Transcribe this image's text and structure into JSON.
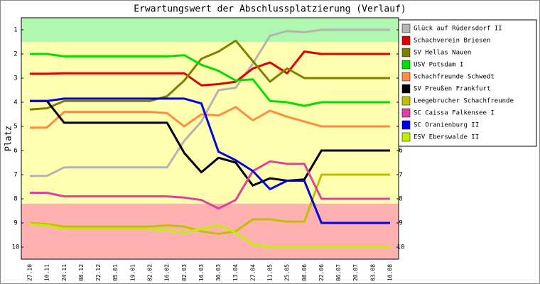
{
  "chart_data": {
    "type": "line",
    "title": "Erwartungswert der Abschlussplatzierung (Verlauf)",
    "y_label": "Platz",
    "categories": [
      "27.10",
      "10.11",
      "24.11",
      "08.12",
      "22.12",
      "05.01",
      "19.01",
      "02.02",
      "16.02",
      "02.03",
      "16.03",
      "30.03",
      "13.04",
      "27.04",
      "11.05",
      "25.05",
      "08.06",
      "22.06",
      "06.07",
      "20.07",
      "03.08",
      "10.08"
    ],
    "ylim": [
      0.5,
      10.5
    ],
    "y_inverted": true,
    "yticks": [
      1,
      2,
      3,
      4,
      5,
      6,
      7,
      8,
      9,
      10
    ],
    "bands": [
      {
        "from": 0.5,
        "to": 1.5,
        "color": "#b0f8b0"
      },
      {
        "from": 1.5,
        "to": 8.2,
        "color": "#ffffb0"
      },
      {
        "from": 8.2,
        "to": 10.5,
        "color": "#ffb0b0"
      }
    ],
    "series": [
      {
        "name": "Glück auf Rüdersdorf II",
        "color": "#b4b4b4",
        "values": [
          7.05,
          7.05,
          6.7,
          6.7,
          6.7,
          6.7,
          6.7,
          6.7,
          6.7,
          5.6,
          4.8,
          3.5,
          3.4,
          2.4,
          1.25,
          1.05,
          1.1,
          1.0,
          1.0,
          1.0,
          1.0,
          1.0
        ]
      },
      {
        "name": "Schachverein Briesen",
        "color": "#e00000",
        "values": [
          2.82,
          2.82,
          2.8,
          2.8,
          2.8,
          2.8,
          2.8,
          2.8,
          2.8,
          2.8,
          3.3,
          3.25,
          3.15,
          2.6,
          2.35,
          2.8,
          1.9,
          2.0,
          2.0,
          2.0,
          2.0,
          2.0
        ]
      },
      {
        "name": "SV Hellas Nauen",
        "color": "#808000",
        "values": [
          4.3,
          4.25,
          3.95,
          3.95,
          3.95,
          3.95,
          3.95,
          3.95,
          3.75,
          3.1,
          2.2,
          1.9,
          1.45,
          2.3,
          3.15,
          2.6,
          3.0,
          3.0,
          3.0,
          3.0,
          3.0,
          3.0
        ]
      },
      {
        "name": "USV Potsdam I",
        "color": "#00e000",
        "values": [
          2.0,
          2.0,
          2.1,
          2.1,
          2.1,
          2.1,
          2.1,
          2.1,
          2.1,
          2.05,
          2.45,
          2.7,
          3.1,
          3.05,
          3.95,
          4.0,
          4.15,
          4.0,
          4.0,
          4.0,
          4.0,
          4.0
        ]
      },
      {
        "name": "Schachfreunde Schwedt",
        "color": "#ff8c40",
        "values": [
          5.05,
          5.05,
          4.4,
          4.4,
          4.4,
          4.4,
          4.4,
          4.4,
          4.45,
          5.0,
          4.5,
          4.55,
          4.2,
          4.75,
          4.35,
          4.6,
          4.8,
          5.0,
          5.0,
          5.0,
          5.0,
          5.0
        ]
      },
      {
        "name": "SV Preußen Frankfurt",
        "color": "#000000",
        "values": [
          3.95,
          3.95,
          4.85,
          4.85,
          4.85,
          4.85,
          4.85,
          4.85,
          4.85,
          6.1,
          6.9,
          6.3,
          6.5,
          7.45,
          7.15,
          7.25,
          7.2,
          6.0,
          6.0,
          6.0,
          6.0,
          6.0
        ]
      },
      {
        "name": "Leegebrucher Schachfreunde",
        "color": "#c0c000",
        "values": [
          9.0,
          9.05,
          9.15,
          9.15,
          9.15,
          9.15,
          9.15,
          9.15,
          9.1,
          9.15,
          9.35,
          9.45,
          9.35,
          8.85,
          8.85,
          8.95,
          8.95,
          7.0,
          7.0,
          7.0,
          7.0,
          7.0
        ]
      },
      {
        "name": "SC Caissa Falkensee I",
        "color": "#e040a0",
        "values": [
          7.75,
          7.75,
          7.9,
          7.9,
          7.9,
          7.9,
          7.9,
          7.9,
          7.9,
          7.95,
          8.05,
          8.4,
          8.05,
          6.85,
          6.45,
          6.55,
          6.55,
          8.0,
          8.0,
          8.0,
          8.0,
          8.0
        ]
      },
      {
        "name": "SC Oranienburg II",
        "color": "#0000e0",
        "values": [
          3.95,
          3.95,
          3.85,
          3.85,
          3.85,
          3.85,
          3.85,
          3.85,
          3.85,
          3.85,
          4.05,
          6.05,
          6.4,
          6.85,
          7.6,
          7.25,
          7.25,
          9.0,
          9.0,
          9.0,
          9.0,
          9.0
        ]
      },
      {
        "name": "ESV Eberswalde II",
        "color": "#c0f000",
        "values": [
          9.05,
          9.1,
          9.25,
          9.25,
          9.25,
          9.25,
          9.25,
          9.25,
          9.3,
          9.4,
          9.25,
          9.1,
          9.4,
          9.9,
          10.0,
          10.0,
          10.0,
          10.0,
          10.0,
          10.0,
          10.0,
          10.0
        ]
      }
    ]
  }
}
